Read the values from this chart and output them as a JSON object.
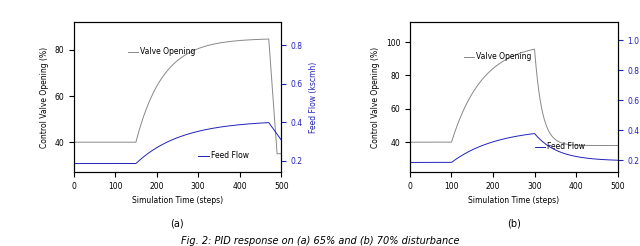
{
  "fig_width": 6.4,
  "fig_height": 2.46,
  "dpi": 100,
  "subplot_a": {
    "title": "(a)",
    "xlabel": "Simulation Time (steps)",
    "ylabel_left": "Control Valve Opening (%)",
    "ylabel_right": "Feed Flow (kscmh)",
    "xlim": [
      0,
      500
    ],
    "ylim_left": [
      27,
      92
    ],
    "ylim_right": [
      0.14,
      0.92
    ],
    "yticks_left": [
      40,
      60,
      80
    ],
    "yticks_right": [
      0.2,
      0.4,
      0.6,
      0.8
    ],
    "xticks": [
      0,
      100,
      200,
      300,
      400,
      500
    ],
    "valve_color": "#888888",
    "flow_color": "#2222bb",
    "legend_valve": "Valve Opening",
    "legend_flow": "Feed Flow",
    "disturbance_step": 150,
    "valve_init": 40,
    "valve_setpoint": 85,
    "valve_drop_start": 470,
    "flow_init": 0.185,
    "flow_setpoint": 0.41
  },
  "subplot_b": {
    "title": "(b)",
    "xlabel": "Simulation Time (steps)",
    "ylabel_left": "Control Valve Opening (%)",
    "ylabel_right": "Feed Flow (kscmh)",
    "xlim": [
      0,
      500
    ],
    "ylim_left": [
      22,
      112
    ],
    "ylim_right": [
      0.12,
      1.12
    ],
    "yticks_left": [
      40,
      60,
      80,
      100
    ],
    "yticks_right": [
      0.2,
      0.4,
      0.6,
      0.8,
      1.0
    ],
    "xticks": [
      0,
      100,
      200,
      300,
      400,
      500
    ],
    "valve_color": "#888888",
    "flow_color": "#2222bb",
    "legend_valve": "Valve Opening",
    "legend_flow": "Feed Flow",
    "disturbance_step": 100,
    "valve_init": 40,
    "valve_peak": 100,
    "valve_final": 38,
    "flow_init": 0.185,
    "flow_peak": 0.415,
    "flow_final": 0.195
  },
  "figure_caption": "Fig. 2: PID response on (a) 65% and (b) 70% disturbance"
}
